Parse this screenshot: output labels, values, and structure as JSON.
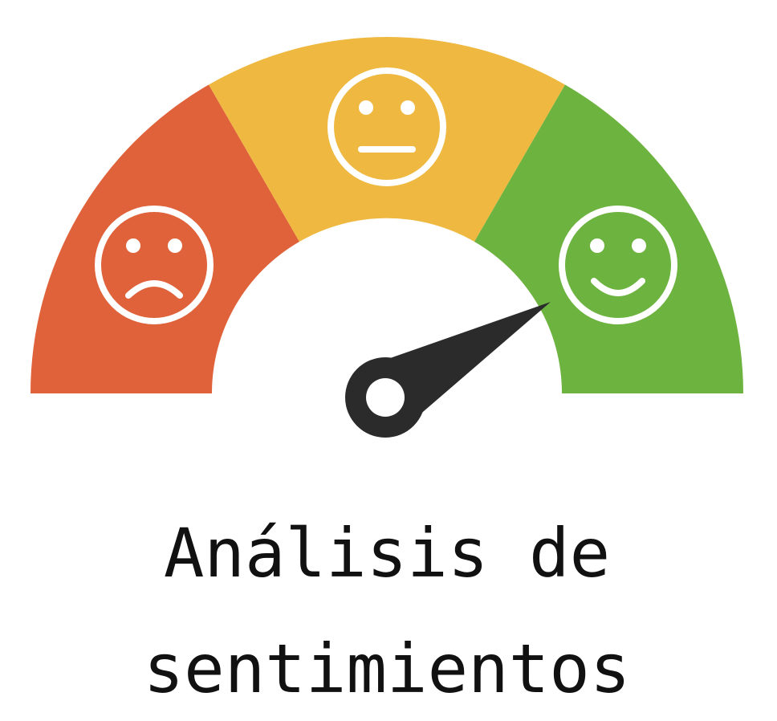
{
  "title": {
    "lines": [
      "Análisis de",
      "sentimientos"
    ]
  }
}
